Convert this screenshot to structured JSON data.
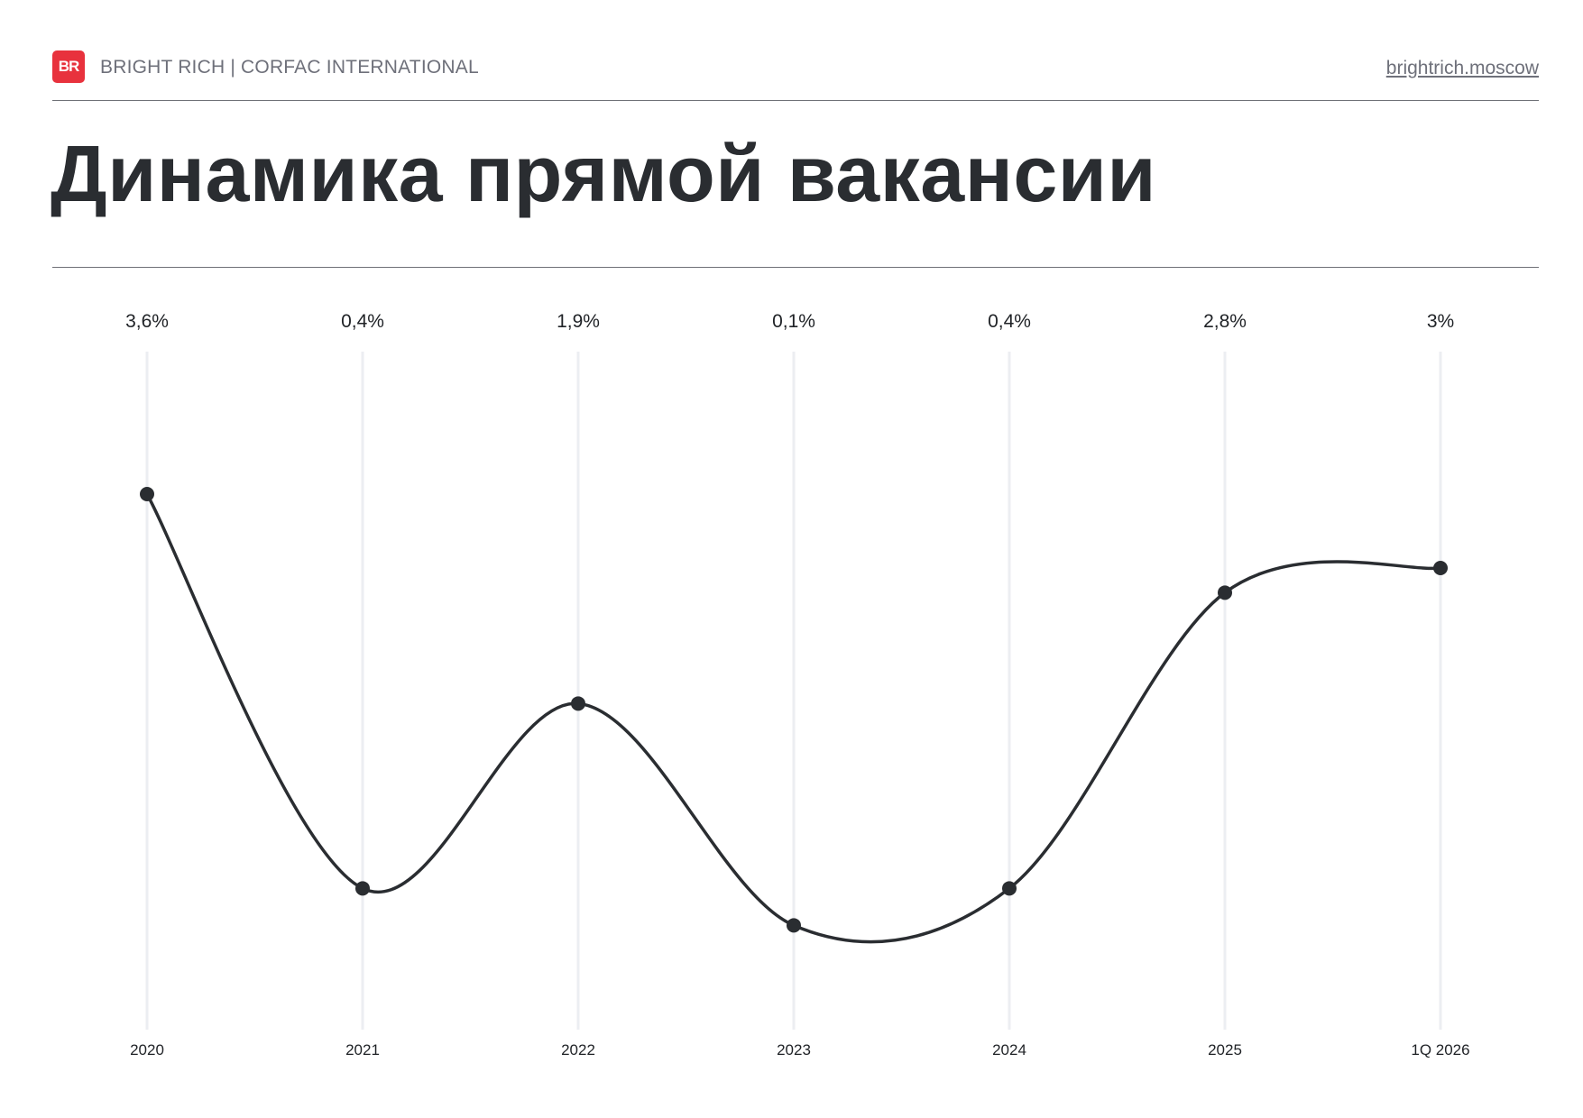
{
  "header": {
    "logo_text": "BR",
    "brand": "BRIGHT RICH | CORFAC INTERNATIONAL",
    "site": "brightrich.moscow"
  },
  "colors": {
    "accent": "#e8323d",
    "line": "#2a2d31",
    "gridline": "#eceef2",
    "muted_text": "#6e707a"
  },
  "chart_data": {
    "type": "line",
    "title": "Динамика прямой вакансии",
    "categories": [
      "2020",
      "2021",
      "2022",
      "2023",
      "2024",
      "2025",
      "1Q 2026"
    ],
    "series": [
      {
        "values": [
          3.6,
          0.4,
          1.9,
          0.1,
          0.4,
          2.8,
          3.0
        ],
        "labels": [
          "3,6%",
          "0,4%",
          "1,9%",
          "0,1%",
          "0,4%",
          "2,8%",
          "3%"
        ]
      }
    ],
    "ylim": [
      0,
      5
    ],
    "smooth": true,
    "grid": "vertical",
    "xlabel": "",
    "ylabel": ""
  }
}
